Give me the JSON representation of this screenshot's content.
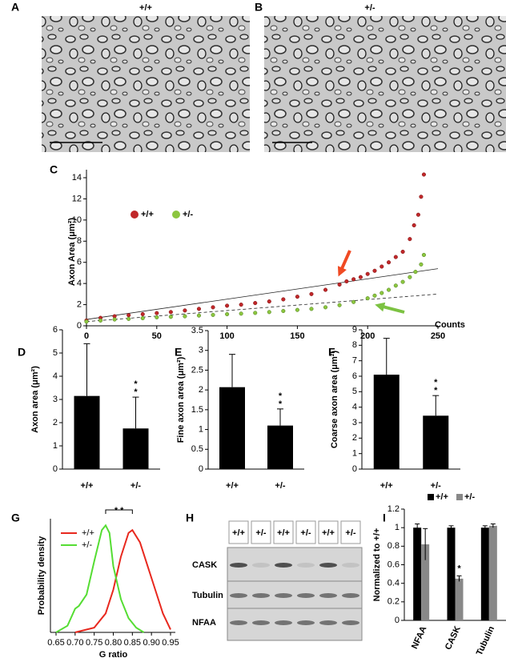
{
  "panel_labels": [
    "A",
    "B",
    "C",
    "D",
    "E",
    "F",
    "G",
    "H",
    "I"
  ],
  "micrograph_titles": [
    "+/+",
    "+/-"
  ],
  "blot": {
    "lanes": [
      "+/+",
      "+/-",
      "+/+",
      "+/-",
      "+/+",
      "+/-"
    ],
    "rows": [
      "CASK",
      "Tubulin",
      "NFAA"
    ]
  },
  "chart_data": [
    {
      "type": "scatter",
      "x_label": "Counts",
      "y_label": "Axon Area (μm²)",
      "xlim": [
        0,
        250
      ],
      "ylim": [
        0,
        14
      ],
      "xticks": [
        0,
        50,
        100,
        150,
        200,
        250
      ],
      "yticks": [
        0,
        2,
        4,
        6,
        8,
        10,
        12,
        14
      ],
      "series": [
        {
          "name": "+/+",
          "color": "#c0282a",
          "x": [
            0,
            10,
            20,
            30,
            40,
            50,
            60,
            70,
            80,
            90,
            100,
            110,
            120,
            130,
            140,
            150,
            160,
            170,
            180,
            185,
            190,
            195,
            200,
            205,
            210,
            215,
            220,
            225,
            230,
            233,
            236,
            238,
            240
          ],
          "values": [
            0.5,
            0.75,
            0.9,
            1.0,
            1.1,
            1.2,
            1.3,
            1.45,
            1.6,
            1.75,
            1.9,
            2.0,
            2.15,
            2.3,
            2.5,
            2.75,
            3.0,
            3.4,
            3.9,
            4.2,
            4.4,
            4.6,
            4.9,
            5.2,
            5.6,
            6.0,
            6.5,
            7.0,
            8.2,
            9.5,
            10.5,
            12.2,
            14.3
          ]
        },
        {
          "name": "+/-",
          "color": "#8cc63f",
          "x": [
            0,
            10,
            20,
            30,
            40,
            50,
            60,
            70,
            80,
            90,
            100,
            110,
            120,
            130,
            140,
            150,
            160,
            170,
            180,
            190,
            200,
            205,
            210,
            215,
            220,
            225,
            230,
            234,
            238,
            240
          ],
          "values": [
            0.4,
            0.5,
            0.6,
            0.65,
            0.72,
            0.8,
            0.85,
            0.9,
            0.97,
            1.03,
            1.1,
            1.15,
            1.22,
            1.3,
            1.4,
            1.5,
            1.6,
            1.75,
            1.95,
            2.25,
            2.6,
            2.85,
            3.1,
            3.4,
            3.8,
            4.15,
            4.6,
            5.1,
            5.8,
            6.7
          ]
        }
      ],
      "trend_lines": [
        {
          "x": [
            0,
            250
          ],
          "values": [
            0.6,
            5.4
          ],
          "style": "solid"
        },
        {
          "x": [
            0,
            250
          ],
          "values": [
            0.4,
            3
          ],
          "style": "dashed"
        }
      ]
    },
    {
      "type": "bar",
      "y_label": "Axon area (μm²)",
      "categories": [
        "+/+",
        "+/-"
      ],
      "values": [
        3.15,
        1.75
      ],
      "errors": [
        2.25,
        1.35
      ],
      "color": "#000000",
      "ylim": [
        0,
        6
      ],
      "yticks": [
        0,
        1,
        2,
        3,
        4,
        5,
        6
      ],
      "annotation": [
        "*",
        "*"
      ]
    },
    {
      "type": "bar",
      "y_label": "Fine axon area (μm²)",
      "categories": [
        "+/+",
        "+/-"
      ],
      "values": [
        2.07,
        1.1
      ],
      "errors": [
        0.83,
        0.42
      ],
      "color": "#000000",
      "ylim": [
        0,
        3.5
      ],
      "yticks": [
        0,
        0.5,
        1,
        1.5,
        2,
        2.5,
        3,
        3.5
      ],
      "annotation": [
        "*",
        "*"
      ]
    },
    {
      "type": "bar",
      "y_label": "Coarse axon area (μm²)",
      "categories": [
        "+/+",
        "+/-"
      ],
      "values": [
        6.1,
        3.45
      ],
      "errors": [
        2.35,
        1.3
      ],
      "color": "#000000",
      "ylim": [
        0,
        9
      ],
      "yticks": [
        0,
        1,
        2,
        3,
        4,
        5,
        6,
        7,
        8,
        9
      ],
      "annotation": [
        "*",
        "*"
      ]
    },
    {
      "type": "line",
      "x_label": "G ratio",
      "y_label": "Probability density",
      "xlim": [
        0.65,
        0.95
      ],
      "ylim": [
        0,
        12
      ],
      "xticks": [
        0.65,
        {
          "value": 0.7,
          "label": "0.70"
        },
        0.75,
        {
          "value": 0.8,
          "label": "0.80"
        },
        0.85,
        {
          "value": 0.9,
          "label": "0.90"
        },
        0.95
      ],
      "annotation": "* *",
      "annotation_span": [
        0.78,
        0.85
      ],
      "series": [
        {
          "name": "+/+",
          "color": "#e8281e",
          "x": [
            0.7,
            0.75,
            0.78,
            0.8,
            0.82,
            0.84,
            0.85,
            0.87,
            0.89,
            0.91,
            0.93,
            0.95
          ],
          "values": [
            0,
            0.5,
            2,
            4.5,
            8,
            10.5,
            10.8,
            9.5,
            7,
            4.5,
            2,
            0.3
          ]
        },
        {
          "name": "+/-",
          "color": "#55dd33",
          "x": [
            0.65,
            0.68,
            0.7,
            0.71,
            0.73,
            0.75,
            0.77,
            0.78,
            0.79,
            0.8,
            0.82,
            0.84,
            0.86,
            0.88
          ],
          "values": [
            0,
            0.7,
            2.5,
            2.8,
            4,
            7.5,
            10.8,
            11.3,
            10.5,
            7,
            3.5,
            1.5,
            0.5,
            0
          ]
        }
      ]
    },
    {
      "type": "grouped_bar",
      "y_label": "Normalized to +/+",
      "categories": [
        "NFAA",
        "CASK",
        "Tubulin"
      ],
      "ylim": [
        0,
        1.2
      ],
      "yticks": [
        0,
        0.2,
        0.4,
        0.6,
        0.8,
        1,
        1.2
      ],
      "series": [
        {
          "name": "+/+",
          "color": "#000000",
          "values": [
            1,
            1,
            1
          ],
          "errors": [
            0.04,
            0.02,
            0.02
          ]
        },
        {
          "name": "+/-",
          "color": "#888888",
          "values": [
            0.82,
            0.45,
            1.02
          ],
          "errors": [
            0.17,
            0.03,
            0.02
          ]
        }
      ],
      "annotation": "*"
    }
  ]
}
